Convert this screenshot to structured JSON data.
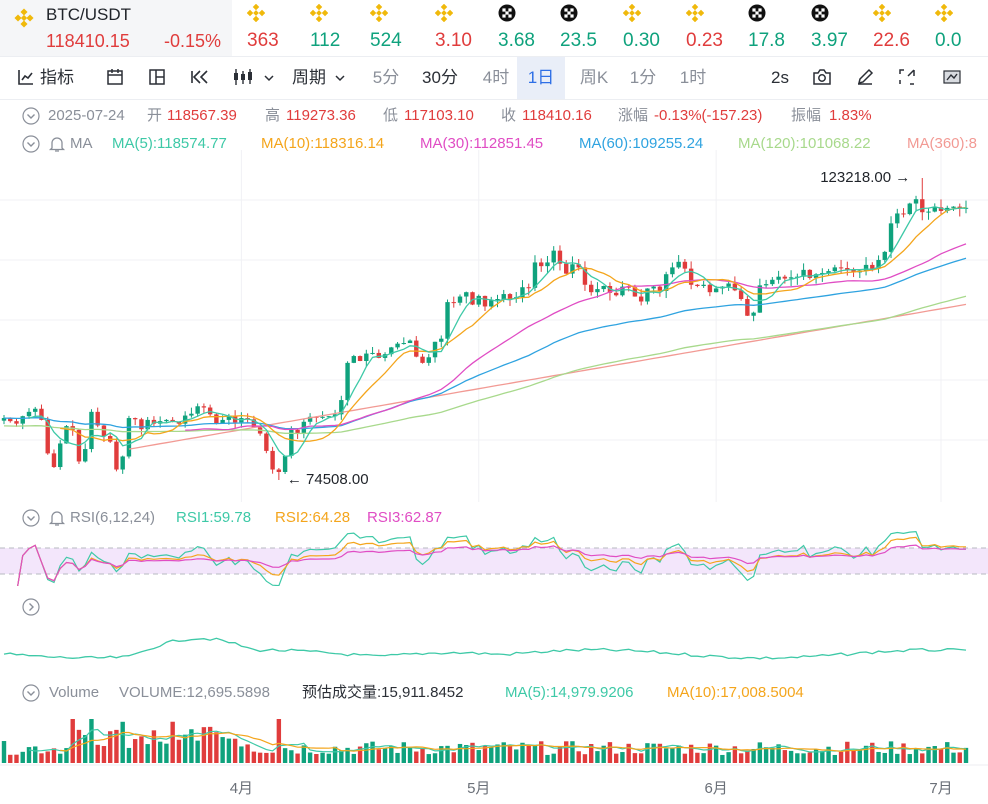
{
  "main_pair": {
    "name": "BTC/USDT",
    "price": "118410.15",
    "change": "-0.15%"
  },
  "tickers": [
    {
      "icon": "binance-icon",
      "value": "363",
      "dir": "dn"
    },
    {
      "icon": "binance-icon",
      "value": "112",
      "dir": "up"
    },
    {
      "icon": "binance-icon",
      "value": "524",
      "dir": "up"
    },
    {
      "icon": "binance-icon",
      "value": "3.10",
      "dir": "dn"
    },
    {
      "icon": "okx-icon",
      "value": "3.68",
      "dir": "up"
    },
    {
      "icon": "okx-icon",
      "value": "23.5",
      "dir": "up"
    },
    {
      "icon": "binance-icon",
      "value": "0.30",
      "dir": "up"
    },
    {
      "icon": "binance-icon",
      "value": "0.23",
      "dir": "dn"
    },
    {
      "icon": "okx-icon",
      "value": "17.8",
      "dir": "up"
    },
    {
      "icon": "okx-icon",
      "value": "3.97",
      "dir": "up"
    },
    {
      "icon": "binance-icon",
      "value": "22.6",
      "dir": "dn"
    },
    {
      "icon": "binance-icon",
      "value": "0.0",
      "dir": "up"
    }
  ],
  "toolbar": {
    "indicator": "指标",
    "period": "周期",
    "intervals": [
      "5分",
      "30分",
      "4时",
      "1日",
      "周K",
      "1分",
      "1时"
    ],
    "active_interval": "1日",
    "refresh": "2s"
  },
  "ohlc": {
    "date": "2025-07-24",
    "open_label": "开",
    "open": "118567.39",
    "high_label": "高",
    "high": "119273.36",
    "low_label": "低",
    "low": "117103.10",
    "close_label": "收",
    "close": "118410.16",
    "change_label": "涨幅",
    "change": "-0.13%(-157.23)",
    "amp_label": "振幅",
    "amp": "1.83%"
  },
  "ma_legend": {
    "title": "MA",
    "items": [
      {
        "label": "MA(5):118574.77",
        "color": "#3ec9a7"
      },
      {
        "label": "MA(10):118316.14",
        "color": "#f4a51c"
      },
      {
        "label": "MA(30):112851.45",
        "color": "#e04dc4"
      },
      {
        "label": "MA(60):109255.24",
        "color": "#2fa3e0"
      },
      {
        "label": "MA(120):101068.22",
        "color": "#a8d98c"
      },
      {
        "label": "MA(360):8",
        "color": "#f29a94"
      }
    ]
  },
  "price_annotations": {
    "max": "123218.00",
    "min": "74508.00"
  },
  "rsi_legend": {
    "title": "RSI(6,12,24)",
    "items": [
      {
        "label": "RSI1:59.78",
        "color": "#3ec9a7"
      },
      {
        "label": "RSI2:64.28",
        "color": "#f4a51c"
      },
      {
        "label": "RSI3:62.87",
        "color": "#e04dc4"
      }
    ]
  },
  "volume_legend": {
    "title": "Volume",
    "volume": "VOLUME:12,695.5898",
    "estimate": "预估成交量:15,911.8452",
    "ma5": "MA(5):14,979.9206",
    "ma10": "MA(10):17,008.5004",
    "ma5_color": "#3ec9a7",
    "ma10_color": "#f4a51c"
  },
  "x_axis_labels": [
    "4月",
    "5月",
    "6月",
    "7月"
  ],
  "colors": {
    "up": "#0fa27d",
    "down": "#e03c3c",
    "accent": "#2e6fe6",
    "rsi_band": "#f3e6fb"
  },
  "chart_data": {
    "type": "candlestick",
    "interval": "1日",
    "x_range": [
      "2025-03",
      "2025-07-24"
    ],
    "y_range": [
      74508,
      123218
    ],
    "close_series_approx": [
      84500,
      84000,
      83600,
      84800,
      85500,
      86000,
      84200,
      78800,
      76600,
      80400,
      83200,
      82600,
      77500,
      79500,
      85500,
      83300,
      81600,
      80700,
      76200,
      78300,
      84500,
      84300,
      82700,
      84200,
      83600,
      84000,
      84200,
      83900,
      83600,
      84900,
      85200,
      86400,
      86200,
      85100,
      83700,
      84200,
      84900,
      83800,
      84500,
      84300,
      83000,
      82000,
      79200,
      76200,
      75800,
      78400,
      82600,
      82100,
      83900,
      84700,
      84600,
      84700,
      84800,
      85100,
      87400,
      93400,
      94500,
      93700,
      94900,
      95000,
      94200,
      94800,
      95900,
      96500,
      96600,
      97000,
      94400,
      93400,
      94300,
      96800,
      97300,
      103200,
      103100,
      104100,
      104800,
      102800,
      104200,
      102500,
      103500,
      103700,
      104500,
      103700,
      104000,
      105600,
      105500,
      109600,
      109000,
      109600,
      111500,
      109400,
      107800,
      109300,
      108800,
      106000,
      104800,
      105300,
      105800,
      104700,
      104300,
      105700,
      105600,
      104100,
      103300,
      105400,
      105700,
      105000,
      107700,
      108800,
      109700,
      108600,
      106000,
      105800,
      106000,
      104800,
      105400,
      105700,
      106200,
      105100,
      103700,
      101000,
      101500,
      105900,
      106100,
      106800,
      107300,
      107000,
      107200,
      107300,
      108400,
      107100,
      107700,
      107900,
      108200,
      108800,
      108700,
      108400,
      108000,
      108300,
      109200,
      108600,
      110000,
      111300,
      115900,
      117500,
      117400,
      119100,
      119800,
      117700,
      117800,
      118500,
      117900,
      118400,
      118600,
      118400,
      118410
    ],
    "moving_averages": [
      "MA(5)",
      "MA(10)",
      "MA(30)",
      "MA(60)",
      "MA(120)",
      "MA(360)"
    ],
    "rsi": {
      "rsi1": 59.78,
      "rsi2": 64.28,
      "rsi3": 62.87,
      "band": [
        30,
        70
      ]
    },
    "volume": {
      "last": 12695.5898,
      "estimate": 15911.8452,
      "ma5": 14979.9206,
      "ma10": 17008.5004
    }
  }
}
